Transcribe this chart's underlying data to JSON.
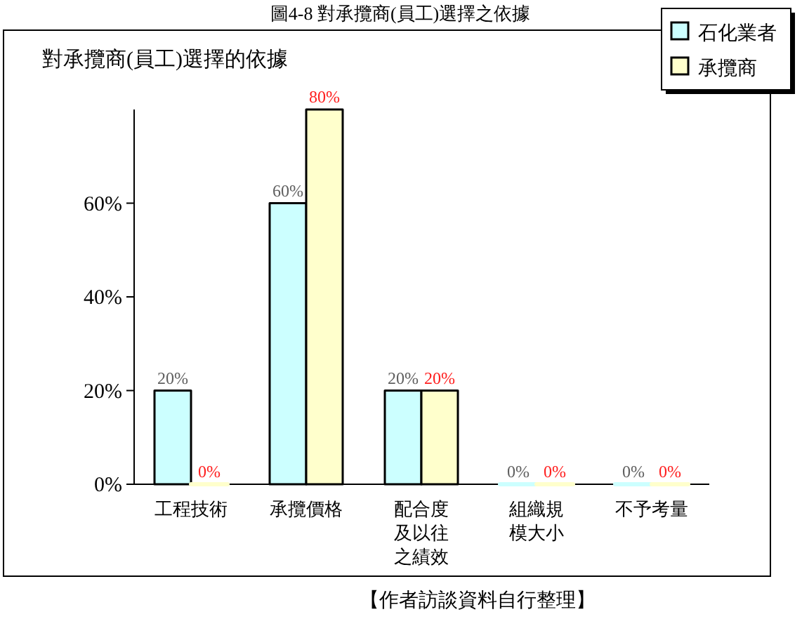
{
  "chart_data": {
    "type": "bar",
    "title": "圖4-8 對承攬商(員工)選擇之依據",
    "subtitle": "對承攬商(員工)選擇的依據",
    "categories": [
      "工程技術",
      "承攬價格",
      "配合度及以往之績效",
      "組織規模大小",
      "不予考量"
    ],
    "series": [
      {
        "name": "石化業者",
        "color": "#ccffff",
        "values": [
          20,
          60,
          20,
          0,
          0
        ],
        "value_labels": [
          "20%",
          "60%",
          "20%",
          "0%",
          "0%"
        ]
      },
      {
        "name": "承攬商",
        "color": "#ffffcc",
        "values": [
          0,
          80,
          20,
          0,
          0
        ],
        "value_labels": [
          "0%",
          "80%",
          "20%",
          "0%",
          "0%"
        ]
      }
    ],
    "ylim": [
      0,
      80
    ],
    "yticks": [
      {
        "value": 0,
        "label": "0%"
      },
      {
        "value": 20,
        "label": "20%"
      },
      {
        "value": 40,
        "label": "40%"
      },
      {
        "value": 60,
        "label": "60%"
      }
    ],
    "legend": "top right",
    "annotations": [
      "【作者訪談資料自行整理】"
    ]
  }
}
